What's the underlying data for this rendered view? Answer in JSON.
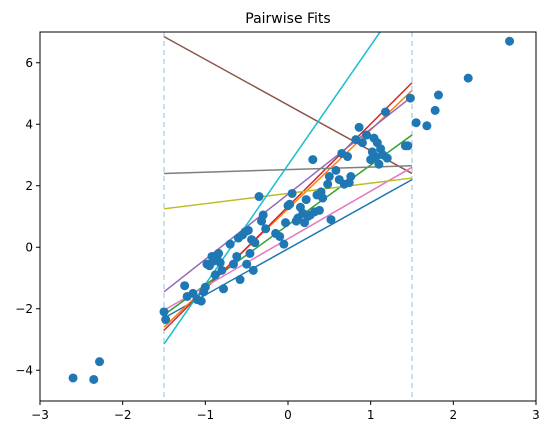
{
  "chart_data": {
    "type": "scatter",
    "title": "Pairwise Fits",
    "xlabel": "",
    "ylabel": "",
    "xlim": [
      -3,
      3
    ],
    "ylim": [
      -5,
      7
    ],
    "xticks": [
      -3,
      -2,
      -1,
      0,
      1,
      2,
      3
    ],
    "yticks": [
      -4,
      -2,
      0,
      2,
      4,
      6
    ],
    "grid": false,
    "vlines": [
      {
        "x": -1.5,
        "color": "#b4d6ec",
        "style": "dashed"
      },
      {
        "x": 1.5,
        "color": "#b4d6ec",
        "style": "dashed"
      }
    ],
    "scatter": {
      "color": "#1f77b4",
      "points": [
        [
          -2.6,
          -4.25
        ],
        [
          -2.35,
          -4.3
        ],
        [
          -2.28,
          -3.72
        ],
        [
          -1.5,
          -2.1
        ],
        [
          -1.48,
          -2.35
        ],
        [
          -1.25,
          -1.25
        ],
        [
          -1.22,
          -1.6
        ],
        [
          -1.15,
          -1.5
        ],
        [
          -1.1,
          -1.7
        ],
        [
          -1.05,
          -1.75
        ],
        [
          -1.02,
          -1.45
        ],
        [
          -1.0,
          -1.3
        ],
        [
          -0.98,
          -0.55
        ],
        [
          -0.95,
          -0.6
        ],
        [
          -0.92,
          -0.3
        ],
        [
          -0.9,
          -0.45
        ],
        [
          -0.88,
          -0.9
        ],
        [
          -0.86,
          -0.35
        ],
        [
          -0.84,
          -0.2
        ],
        [
          -0.82,
          -0.5
        ],
        [
          -0.8,
          -0.75
        ],
        [
          -0.78,
          -1.35
        ],
        [
          -0.7,
          0.1
        ],
        [
          -0.66,
          -0.55
        ],
        [
          -0.62,
          -0.3
        ],
        [
          -0.6,
          0.3
        ],
        [
          -0.58,
          -1.05
        ],
        [
          -0.55,
          0.4
        ],
        [
          -0.52,
          0.5
        ],
        [
          -0.5,
          -0.55
        ],
        [
          -0.48,
          0.55
        ],
        [
          -0.46,
          -0.2
        ],
        [
          -0.44,
          0.25
        ],
        [
          -0.42,
          -0.75
        ],
        [
          -0.4,
          0.15
        ],
        [
          -0.35,
          1.65
        ],
        [
          -0.32,
          0.85
        ],
        [
          -0.3,
          1.05
        ],
        [
          -0.27,
          0.6
        ],
        [
          -0.15,
          0.45
        ],
        [
          -0.1,
          0.35
        ],
        [
          -0.05,
          0.1
        ],
        [
          -0.03,
          0.8
        ],
        [
          0.0,
          1.35
        ],
        [
          0.02,
          1.4
        ],
        [
          0.05,
          1.75
        ],
        [
          0.1,
          0.85
        ],
        [
          0.12,
          0.95
        ],
        [
          0.15,
          1.3
        ],
        [
          0.18,
          1.1
        ],
        [
          0.2,
          0.8
        ],
        [
          0.22,
          1.55
        ],
        [
          0.24,
          1.0
        ],
        [
          0.27,
          1.05
        ],
        [
          0.3,
          2.85
        ],
        [
          0.32,
          1.15
        ],
        [
          0.35,
          1.7
        ],
        [
          0.38,
          1.2
        ],
        [
          0.4,
          1.8
        ],
        [
          0.42,
          1.6
        ],
        [
          0.48,
          2.05
        ],
        [
          0.5,
          2.3
        ],
        [
          0.52,
          0.9
        ],
        [
          0.58,
          2.5
        ],
        [
          0.62,
          2.2
        ],
        [
          0.65,
          3.05
        ],
        [
          0.68,
          2.05
        ],
        [
          0.72,
          2.95
        ],
        [
          0.74,
          2.1
        ],
        [
          0.76,
          2.3
        ],
        [
          0.82,
          3.5
        ],
        [
          0.86,
          3.9
        ],
        [
          0.9,
          3.4
        ],
        [
          0.95,
          3.65
        ],
        [
          1.0,
          2.85
        ],
        [
          1.02,
          3.1
        ],
        [
          1.04,
          3.55
        ],
        [
          1.06,
          2.95
        ],
        [
          1.08,
          3.4
        ],
        [
          1.1,
          2.7
        ],
        [
          1.12,
          3.2
        ],
        [
          1.15,
          3.0
        ],
        [
          1.18,
          4.4
        ],
        [
          1.2,
          2.9
        ],
        [
          1.42,
          3.3
        ],
        [
          1.45,
          3.3
        ],
        [
          1.48,
          4.85
        ],
        [
          1.55,
          4.05
        ],
        [
          1.68,
          3.95
        ],
        [
          1.78,
          4.45
        ],
        [
          1.82,
          4.95
        ],
        [
          2.18,
          5.5
        ],
        [
          2.68,
          6.7
        ]
      ]
    },
    "fit_lines": [
      {
        "color": "#1f77b4",
        "x": [
          -1.5,
          1.5
        ],
        "y": [
          -2.3,
          2.2
        ]
      },
      {
        "color": "#ff7f0e",
        "x": [
          -1.5,
          1.5
        ],
        "y": [
          -2.6,
          5.1
        ]
      },
      {
        "color": "#2ca02c",
        "x": [
          -1.5,
          1.5
        ],
        "y": [
          -2.2,
          3.65
        ]
      },
      {
        "color": "#d62728",
        "x": [
          -1.5,
          1.5
        ],
        "y": [
          -2.7,
          5.35
        ]
      },
      {
        "color": "#9467bd",
        "x": [
          -1.5,
          1.5
        ],
        "y": [
          -1.45,
          4.9
        ]
      },
      {
        "color": "#8c564b",
        "x": [
          -1.5,
          1.5
        ],
        "y": [
          6.85,
          2.4
        ]
      },
      {
        "color": "#e377c2",
        "x": [
          -1.5,
          1.5
        ],
        "y": [
          -2.05,
          2.6
        ]
      },
      {
        "color": "#7f7f7f",
        "x": [
          -1.5,
          1.5
        ],
        "y": [
          2.4,
          2.65
        ]
      },
      {
        "color": "#bcbd22",
        "x": [
          -1.5,
          1.5
        ],
        "y": [
          1.25,
          2.25
        ]
      },
      {
        "color": "#17becf",
        "x": [
          -1.5,
          1.5
        ],
        "y": [
          -3.15,
          8.5
        ]
      }
    ]
  }
}
